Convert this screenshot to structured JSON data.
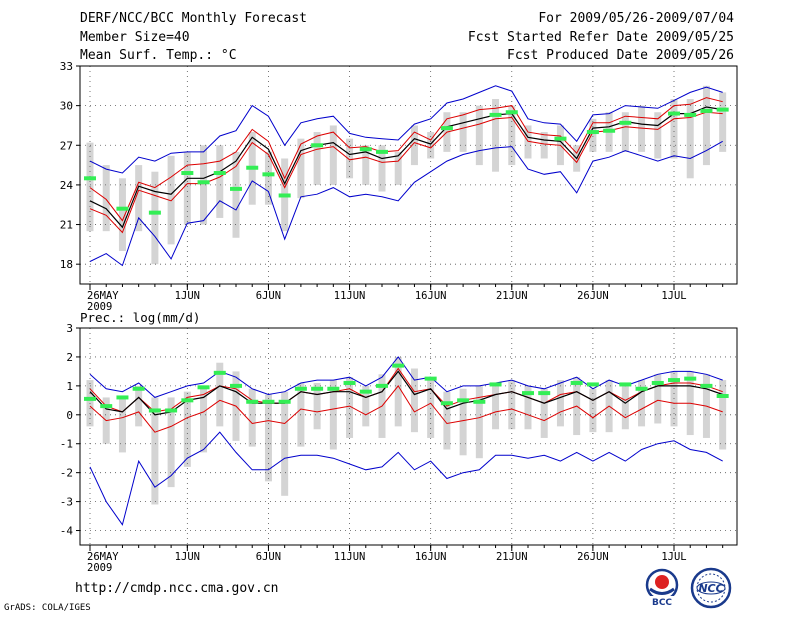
{
  "header": {
    "title": "DERF/NCC/BCC Monthly Forecast",
    "member_size": "Member Size=40",
    "top_variable": "Mean Surf. Temp.: °C",
    "period": "For 2009/05/26-2009/07/04",
    "started": "Fcst Started Refer Date 2009/05/25",
    "produced": "Fcst Produced Date 2009/05/26"
  },
  "footer": {
    "url": "http://cmdp.ncc.cma.gov.cn",
    "credit": "GrADS: COLA/IGES"
  },
  "logos": {
    "bcc": "BCC",
    "ncc": "NCC"
  },
  "colors": {
    "ensemble_max": "#0000cc",
    "ensemble_upper": "#dd0000",
    "ensemble_mean": "#000000",
    "member_range": "#d4d4d4",
    "highlight": "#33ee55",
    "grid": "#555555"
  },
  "chart_data": [
    {
      "type": "line",
      "title": "Mean Surf. Temp.: °C",
      "x": [
        "26MAY",
        "27MAY",
        "28MAY",
        "29MAY",
        "30MAY",
        "31MAY",
        "1JUN",
        "2JUN",
        "3JUN",
        "4JUN",
        "5JUN",
        "6JUN",
        "7JUN",
        "8JUN",
        "9JUN",
        "10JUN",
        "11JUN",
        "12JUN",
        "13JUN",
        "14JUN",
        "15JUN",
        "16JUN",
        "17JUN",
        "18JUN",
        "19JUN",
        "20JUN",
        "21JUN",
        "22JUN",
        "23JUN",
        "24JUN",
        "25JUN",
        "26JUN",
        "27JUN",
        "28JUN",
        "29JUN",
        "30JUN",
        "1JUL",
        "2JUL",
        "3JUL",
        "4JUL"
      ],
      "xticks": [
        "26MAY\n2009",
        "1JUN",
        "6JUN",
        "11JUN",
        "16JUN",
        "21JUN",
        "26JUN",
        "1JUL"
      ],
      "ylim": [
        16.5,
        33
      ],
      "yticks": [
        18,
        21,
        24,
        27,
        30,
        33
      ],
      "series": [
        {
          "name": "max",
          "values": [
            25.8,
            25.2,
            24.9,
            26.1,
            25.8,
            26.4,
            26.5,
            26.5,
            27.7,
            28.1,
            30.0,
            29.2,
            27.0,
            28.7,
            29.0,
            29.2,
            27.9,
            27.6,
            27.5,
            27.4,
            28.6,
            29.0,
            30.2,
            30.5,
            31.0,
            31.5,
            31.1,
            29.0,
            28.7,
            28.6,
            27.3,
            29.3,
            29.4,
            30.0,
            29.9,
            29.8,
            30.4,
            31.0,
            31.4,
            31.0
          ]
        },
        {
          "name": "upper",
          "values": [
            23.8,
            22.9,
            21.3,
            24.2,
            23.8,
            24.6,
            25.5,
            25.6,
            25.8,
            26.5,
            28.2,
            27.3,
            24.5,
            27.1,
            27.7,
            28.0,
            26.8,
            26.9,
            26.5,
            26.6,
            28.0,
            27.4,
            29.0,
            29.3,
            29.7,
            29.8,
            30.0,
            28.0,
            27.8,
            27.7,
            26.4,
            28.7,
            28.7,
            29.2,
            29.1,
            29.0,
            30.0,
            30.1,
            30.6,
            30.3
          ]
        },
        {
          "name": "mean",
          "values": [
            22.8,
            22.2,
            20.8,
            23.9,
            23.5,
            23.3,
            24.5,
            24.5,
            25.0,
            25.8,
            27.6,
            26.7,
            24.1,
            26.6,
            27.0,
            27.2,
            26.3,
            26.5,
            26.0,
            26.2,
            27.5,
            27.1,
            28.4,
            28.7,
            29.0,
            29.3,
            29.4,
            27.6,
            27.4,
            27.3,
            26.0,
            28.3,
            28.4,
            28.8,
            28.6,
            28.5,
            29.4,
            29.4,
            29.9,
            29.7
          ]
        },
        {
          "name": "lower",
          "values": [
            22.2,
            21.7,
            20.4,
            23.6,
            23.2,
            22.8,
            24.1,
            24.1,
            24.6,
            25.4,
            27.2,
            26.3,
            23.8,
            26.3,
            26.7,
            26.9,
            25.9,
            26.1,
            25.7,
            25.8,
            27.2,
            26.8,
            28.0,
            28.3,
            28.6,
            29.0,
            29.1,
            27.3,
            27.1,
            27.0,
            25.7,
            28.0,
            28.1,
            28.4,
            28.3,
            28.2,
            29.0,
            29.1,
            29.5,
            29.4
          ]
        },
        {
          "name": "min",
          "values": [
            18.2,
            18.8,
            17.9,
            21.5,
            20.1,
            18.4,
            21.1,
            21.3,
            22.8,
            22.1,
            24.3,
            23.5,
            19.9,
            23.1,
            23.3,
            23.8,
            23.1,
            23.3,
            23.1,
            22.8,
            24.2,
            25.0,
            25.8,
            26.3,
            26.6,
            26.8,
            26.9,
            25.2,
            24.8,
            25.0,
            23.4,
            25.8,
            26.1,
            26.6,
            26.2,
            25.8,
            26.2,
            26.0,
            26.6,
            27.3
          ]
        }
      ],
      "range_bars": [
        [
          20.5,
          27.2
        ],
        [
          20.5,
          25.5
        ],
        [
          19.0,
          24.5
        ],
        [
          20.5,
          25.5
        ],
        [
          18.0,
          25.0
        ],
        [
          19.5,
          26.2
        ],
        [
          21.0,
          26.5
        ],
        [
          21.0,
          27.0
        ],
        [
          21.5,
          27.0
        ],
        [
          20.0,
          26.5
        ],
        [
          22.5,
          28.0
        ],
        [
          22.5,
          26.5
        ],
        [
          20.5,
          26.0
        ],
        [
          23.0,
          27.5
        ],
        [
          24.0,
          28.0
        ],
        [
          24.0,
          28.5
        ],
        [
          24.5,
          27.5
        ],
        [
          24.0,
          27.0
        ],
        [
          23.5,
          27.0
        ],
        [
          24.0,
          26.5
        ],
        [
          25.5,
          28.5
        ],
        [
          26.0,
          28.0
        ],
        [
          26.5,
          29.5
        ],
        [
          26.5,
          29.5
        ],
        [
          25.5,
          30.0
        ],
        [
          25.0,
          30.5
        ],
        [
          25.5,
          30.0
        ],
        [
          26.0,
          28.5
        ],
        [
          26.0,
          28.0
        ],
        [
          25.5,
          28.5
        ],
        [
          25.0,
          27.0
        ],
        [
          26.5,
          29.0
        ],
        [
          26.5,
          29.5
        ],
        [
          26.5,
          29.5
        ],
        [
          26.5,
          30.0
        ],
        [
          26.0,
          29.5
        ],
        [
          26.0,
          30.5
        ],
        [
          24.5,
          30.5
        ],
        [
          25.5,
          31.5
        ],
        [
          26.5,
          31.0
        ]
      ],
      "highlight_markers": [
        {
          "i": 0,
          "y": 24.5
        },
        {
          "i": 2,
          "y": 22.2
        },
        {
          "i": 4,
          "y": 21.9
        },
        {
          "i": 6,
          "y": 24.9
        },
        {
          "i": 7,
          "y": 24.2
        },
        {
          "i": 8,
          "y": 24.9
        },
        {
          "i": 9,
          "y": 23.7
        },
        {
          "i": 10,
          "y": 25.3
        },
        {
          "i": 11,
          "y": 24.8
        },
        {
          "i": 12,
          "y": 23.2
        },
        {
          "i": 14,
          "y": 27.0
        },
        {
          "i": 17,
          "y": 26.7
        },
        {
          "i": 18,
          "y": 26.5
        },
        {
          "i": 22,
          "y": 28.3
        },
        {
          "i": 25,
          "y": 29.3
        },
        {
          "i": 26,
          "y": 29.5
        },
        {
          "i": 29,
          "y": 27.5
        },
        {
          "i": 31,
          "y": 28.0
        },
        {
          "i": 32,
          "y": 28.1
        },
        {
          "i": 33,
          "y": 28.7
        },
        {
          "i": 36,
          "y": 29.4
        },
        {
          "i": 37,
          "y": 29.3
        },
        {
          "i": 38,
          "y": 29.6
        },
        {
          "i": 39,
          "y": 29.7
        }
      ]
    },
    {
      "type": "line",
      "title": "Prec.: log(mm/d)",
      "x": [
        "26MAY",
        "27MAY",
        "28MAY",
        "29MAY",
        "30MAY",
        "31MAY",
        "1JUN",
        "2JUN",
        "3JUN",
        "4JUN",
        "5JUN",
        "6JUN",
        "7JUN",
        "8JUN",
        "9JUN",
        "10JUN",
        "11JUN",
        "12JUN",
        "13JUN",
        "14JUN",
        "15JUN",
        "16JUN",
        "17JUN",
        "18JUN",
        "19JUN",
        "20JUN",
        "21JUN",
        "22JUN",
        "23JUN",
        "24JUN",
        "25JUN",
        "26JUN",
        "27JUN",
        "28JUN",
        "29JUN",
        "30JUN",
        "1JUL",
        "2JUL",
        "3JUL",
        "4JUL"
      ],
      "xticks": [
        "26MAY\n2009",
        "1JUN",
        "6JUN",
        "11JUN",
        "16JUN",
        "21JUN",
        "26JUN",
        "1JUL"
      ],
      "ylim": [
        -4.5,
        3
      ],
      "yticks": [
        -4,
        -3,
        -2,
        -1,
        0,
        1,
        2,
        3
      ],
      "series": [
        {
          "name": "max",
          "values": [
            1.4,
            0.9,
            0.8,
            1.1,
            0.6,
            0.8,
            1.0,
            1.1,
            1.5,
            1.3,
            0.9,
            0.7,
            0.8,
            1.1,
            1.2,
            1.2,
            1.3,
            1.0,
            1.3,
            2.0,
            1.2,
            1.3,
            0.8,
            1.0,
            1.0,
            1.1,
            1.2,
            1.0,
            0.9,
            1.1,
            1.3,
            0.9,
            1.2,
            1.0,
            1.2,
            1.4,
            1.5,
            1.5,
            1.4,
            1.2
          ]
        },
        {
          "name": "upper",
          "values": [
            0.9,
            0.3,
            0.1,
            0.6,
            0.1,
            0.2,
            0.6,
            0.7,
            1.0,
            0.9,
            0.5,
            0.4,
            0.4,
            0.8,
            0.7,
            0.8,
            0.9,
            0.6,
            0.8,
            1.6,
            0.8,
            0.9,
            0.3,
            0.5,
            0.6,
            0.7,
            0.8,
            0.6,
            0.4,
            0.7,
            0.8,
            0.5,
            0.8,
            0.5,
            0.8,
            1.0,
            1.1,
            1.1,
            1.0,
            0.8
          ]
        },
        {
          "name": "mean",
          "values": [
            0.8,
            0.2,
            0.1,
            0.6,
            0.0,
            0.1,
            0.5,
            0.6,
            1.0,
            0.8,
            0.4,
            0.4,
            0.4,
            0.8,
            0.7,
            0.8,
            0.8,
            0.6,
            0.8,
            1.5,
            0.7,
            0.9,
            0.2,
            0.4,
            0.5,
            0.7,
            0.8,
            0.6,
            0.4,
            0.6,
            0.8,
            0.5,
            0.8,
            0.4,
            0.8,
            1.0,
            1.0,
            1.0,
            0.9,
            0.7
          ]
        },
        {
          "name": "lower",
          "values": [
            0.3,
            -0.2,
            -0.1,
            0.1,
            -0.6,
            -0.4,
            -0.1,
            0.1,
            0.5,
            0.3,
            -0.3,
            -0.2,
            -0.3,
            0.2,
            0.1,
            0.2,
            0.3,
            0.0,
            0.3,
            1.0,
            0.1,
            0.4,
            -0.3,
            -0.2,
            -0.1,
            0.1,
            0.2,
            0.0,
            -0.2,
            0.1,
            0.3,
            -0.1,
            0.3,
            -0.1,
            0.2,
            0.5,
            0.4,
            0.4,
            0.3,
            0.1
          ]
        },
        {
          "name": "min",
          "values": [
            -1.8,
            -3.0,
            -3.8,
            -1.6,
            -2.5,
            -2.1,
            -1.5,
            -1.2,
            -0.6,
            -1.3,
            -1.9,
            -1.9,
            -1.5,
            -1.4,
            -1.4,
            -1.5,
            -1.7,
            -1.9,
            -1.8,
            -1.3,
            -1.9,
            -1.6,
            -2.2,
            -2.0,
            -1.9,
            -1.4,
            -1.4,
            -1.5,
            -1.4,
            -1.6,
            -1.3,
            -1.6,
            -1.3,
            -1.6,
            -1.2,
            -1.0,
            -0.9,
            -1.2,
            -1.3,
            -1.6
          ]
        },
        {
          "name": "min_alt",
          "values": [
            -1.8,
            -3.0,
            -3.8,
            -1.6,
            -2.5,
            -2.1,
            -1.5,
            -1.2,
            -0.6,
            -1.3,
            -1.9,
            -1.9,
            -1.5,
            -1.4,
            -1.4,
            -1.5,
            -1.7,
            -1.9,
            -1.8,
            -1.3,
            -1.9,
            -1.6,
            -2.2,
            -2.0,
            -1.9,
            -1.4,
            -1.4,
            -1.5,
            -1.4,
            -1.6,
            -1.3,
            -1.6,
            -1.3,
            -1.6,
            -1.2,
            -1.0,
            -0.9,
            -1.2,
            -1.3,
            -1.6
          ]
        }
      ],
      "range_bars": [
        [
          -0.4,
          1.2
        ],
        [
          -1.0,
          0.6
        ],
        [
          -1.3,
          0.6
        ],
        [
          -0.4,
          1.0
        ],
        [
          -3.1,
          0.6
        ],
        [
          -2.5,
          0.6
        ],
        [
          -1.8,
          0.8
        ],
        [
          -1.3,
          1.0
        ],
        [
          -0.4,
          1.8
        ],
        [
          -0.9,
          1.5
        ],
        [
          -1.1,
          0.9
        ],
        [
          -2.3,
          0.7
        ],
        [
          -2.8,
          0.8
        ],
        [
          -1.1,
          1.1
        ],
        [
          -0.5,
          1.1
        ],
        [
          -1.2,
          1.2
        ],
        [
          -0.8,
          1.3
        ],
        [
          -0.4,
          1.0
        ],
        [
          -0.8,
          1.4
        ],
        [
          -0.4,
          2.0
        ],
        [
          -0.6,
          1.6
        ],
        [
          -0.8,
          1.3
        ],
        [
          -1.2,
          0.8
        ],
        [
          -1.4,
          0.9
        ],
        [
          -1.5,
          1.0
        ],
        [
          -0.5,
          1.1
        ],
        [
          -0.5,
          1.2
        ],
        [
          -0.5,
          1.0
        ],
        [
          -0.8,
          0.9
        ],
        [
          -0.4,
          1.2
        ],
        [
          -0.7,
          1.3
        ],
        [
          -0.6,
          0.9
        ],
        [
          -0.6,
          1.2
        ],
        [
          -0.5,
          1.0
        ],
        [
          -0.4,
          1.2
        ],
        [
          -0.3,
          1.4
        ],
        [
          -0.4,
          1.5
        ],
        [
          -0.7,
          1.5
        ],
        [
          -0.8,
          1.4
        ],
        [
          -1.2,
          1.2
        ]
      ],
      "highlight_markers": [
        {
          "i": 0,
          "y": 0.55
        },
        {
          "i": 1,
          "y": 0.3
        },
        {
          "i": 2,
          "y": 0.6
        },
        {
          "i": 3,
          "y": 0.9
        },
        {
          "i": 4,
          "y": 0.15
        },
        {
          "i": 5,
          "y": 0.15
        },
        {
          "i": 6,
          "y": 0.5
        },
        {
          "i": 7,
          "y": 0.95
        },
        {
          "i": 8,
          "y": 1.45
        },
        {
          "i": 9,
          "y": 1.0
        },
        {
          "i": 10,
          "y": 0.45
        },
        {
          "i": 11,
          "y": 0.45
        },
        {
          "i": 12,
          "y": 0.45
        },
        {
          "i": 13,
          "y": 0.9
        },
        {
          "i": 14,
          "y": 0.9
        },
        {
          "i": 15,
          "y": 0.9
        },
        {
          "i": 16,
          "y": 1.1
        },
        {
          "i": 17,
          "y": 0.8
        },
        {
          "i": 18,
          "y": 1.0
        },
        {
          "i": 19,
          "y": 1.7
        },
        {
          "i": 21,
          "y": 1.25
        },
        {
          "i": 22,
          "y": 0.4
        },
        {
          "i": 23,
          "y": 0.5
        },
        {
          "i": 24,
          "y": 0.45
        },
        {
          "i": 25,
          "y": 1.05
        },
        {
          "i": 27,
          "y": 0.75
        },
        {
          "i": 28,
          "y": 0.75
        },
        {
          "i": 30,
          "y": 1.1
        },
        {
          "i": 31,
          "y": 1.05
        },
        {
          "i": 33,
          "y": 1.05
        },
        {
          "i": 34,
          "y": 0.9
        },
        {
          "i": 35,
          "y": 1.1
        },
        {
          "i": 36,
          "y": 1.2
        },
        {
          "i": 37,
          "y": 1.25
        },
        {
          "i": 38,
          "y": 1.0
        },
        {
          "i": 39,
          "y": 0.65
        }
      ]
    }
  ]
}
